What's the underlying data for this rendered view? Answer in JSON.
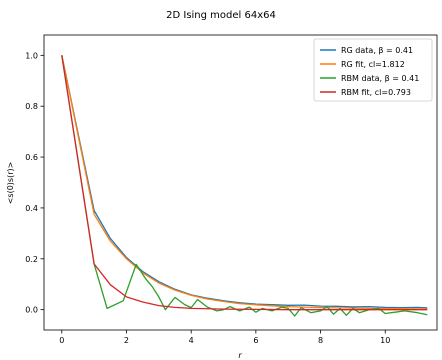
{
  "chart_data": {
    "type": "line",
    "title": "2D Ising model 64x64",
    "xlabel": "r",
    "ylabel": "<s(0)s(r)>",
    "xlim": [
      -0.55,
      11.6
    ],
    "ylim": [
      -0.08,
      1.08
    ],
    "xticks": [
      0,
      2,
      4,
      6,
      8,
      10
    ],
    "yticks": [
      0.0,
      0.2,
      0.4,
      0.6,
      0.8,
      1.0
    ],
    "xtick_labels": [
      "0",
      "2",
      "4",
      "6",
      "8",
      "10"
    ],
    "ytick_labels": [
      "0.0",
      "0.2",
      "0.4",
      "0.6",
      "0.8",
      "1.0"
    ],
    "grid": false,
    "legend_position": "top-right",
    "series": [
      {
        "name": "RG data, β = 0.41",
        "color": "#1f77b4",
        "x": [
          0,
          1,
          1.5,
          2,
          2.5,
          3,
          3.5,
          4,
          4.5,
          5,
          5.5,
          6,
          6.5,
          7,
          7.5,
          8,
          8.5,
          9,
          9.5,
          10,
          10.5,
          11,
          11.3
        ],
        "y": [
          1.0,
          0.39,
          0.28,
          0.205,
          0.15,
          0.11,
          0.08,
          0.058,
          0.045,
          0.035,
          0.027,
          0.022,
          0.02,
          0.017,
          0.018,
          0.014,
          0.013,
          0.011,
          0.012,
          0.009,
          0.008,
          0.009,
          0.007
        ]
      },
      {
        "name": "RG fit, cl=1.812",
        "color": "#ff7f0e",
        "x": [
          0,
          1,
          1.5,
          2,
          2.5,
          3,
          3.5,
          4,
          4.5,
          5,
          5.5,
          6,
          6.5,
          7,
          7.5,
          8,
          8.5,
          9,
          9.5,
          10,
          10.5,
          11,
          11.3
        ],
        "y": [
          1.0,
          0.375,
          0.27,
          0.2,
          0.145,
          0.105,
          0.077,
          0.056,
          0.042,
          0.032,
          0.024,
          0.019,
          0.015,
          0.012,
          0.01,
          0.008,
          0.007,
          0.006,
          0.005,
          0.004,
          0.004,
          0.003,
          0.003
        ]
      },
      {
        "name": "RBM data, β = 0.41",
        "color": "#2ca02c",
        "x": [
          0,
          1,
          1.4,
          1.9,
          2.3,
          2.6,
          2.8,
          3.0,
          3.2,
          3.5,
          3.8,
          4.0,
          4.2,
          4.5,
          4.8,
          5.0,
          5.2,
          5.5,
          5.8,
          6.0,
          6.2,
          6.5,
          6.8,
          7.0,
          7.2,
          7.4,
          7.7,
          8.0,
          8.2,
          8.4,
          8.6,
          8.8,
          9.0,
          9.2,
          9.5,
          9.8,
          10.0,
          10.3,
          10.6,
          11.0,
          11.3
        ],
        "y": [
          1.0,
          0.18,
          0.005,
          0.035,
          0.178,
          0.12,
          0.09,
          0.05,
          0.0,
          0.048,
          0.02,
          0.008,
          0.04,
          0.01,
          -0.005,
          0.0,
          0.012,
          -0.005,
          0.01,
          -0.01,
          0.005,
          -0.005,
          0.01,
          0.005,
          -0.025,
          0.008,
          -0.012,
          -0.005,
          0.012,
          -0.018,
          0.005,
          -0.022,
          0.005,
          -0.012,
          0.0,
          0.005,
          -0.015,
          -0.01,
          -0.005,
          -0.012,
          -0.02
        ]
      },
      {
        "name": "RBM fit, cl=0.793",
        "color": "#d62728",
        "x": [
          0,
          1,
          1.5,
          2,
          2.5,
          3,
          3.5,
          4,
          5,
          6,
          7,
          8,
          9,
          10,
          11,
          11.3
        ],
        "y": [
          1.0,
          0.18,
          0.098,
          0.05,
          0.03,
          0.016,
          0.009,
          0.005,
          0.002,
          0.001,
          0.0,
          0.0,
          0.0,
          0.0,
          0.0,
          0.0
        ]
      }
    ]
  }
}
